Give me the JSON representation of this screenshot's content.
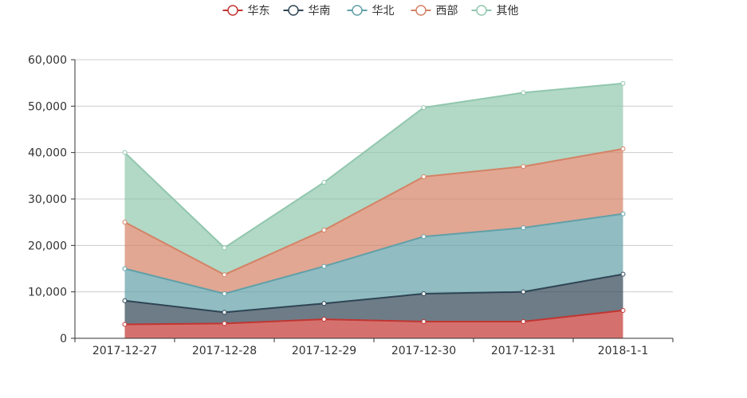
{
  "chart_data": {
    "type": "area",
    "stacked": true,
    "categories": [
      "2017-12-27",
      "2017-12-28",
      "2017-12-29",
      "2017-12-30",
      "2017-12-31",
      "2018-1-1"
    ],
    "series": [
      {
        "name": "华东",
        "color": "#c23531",
        "values": [
          3000,
          3200,
          4100,
          3600,
          3600,
          6000
        ]
      },
      {
        "name": "华南",
        "color": "#2f4554",
        "values": [
          5100,
          2400,
          3400,
          6000,
          6400,
          7800
        ]
      },
      {
        "name": "华北",
        "color": "#61a0a8",
        "values": [
          6900,
          4000,
          8000,
          12300,
          13800,
          13000
        ]
      },
      {
        "name": "西部",
        "color": "#d48265",
        "values": [
          10000,
          4100,
          7800,
          12900,
          13200,
          14000
        ]
      },
      {
        "name": "其他",
        "color": "#91c7ae",
        "values": [
          15000,
          5800,
          10300,
          14900,
          15900,
          14100
        ]
      }
    ],
    "y_ticks": [
      "0",
      "10,000",
      "20,000",
      "30,000",
      "40,000",
      "50,000",
      "60,000"
    ],
    "ylim": [
      0,
      60000
    ],
    "legend_position": "top-center",
    "grid": true
  }
}
